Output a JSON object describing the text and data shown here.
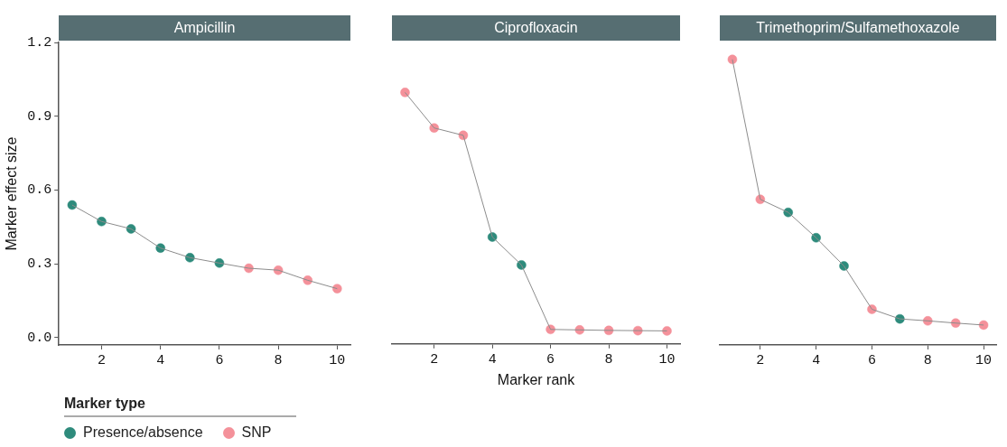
{
  "chart_data": [
    {
      "type": "scatter",
      "title": "Ampicillin",
      "ylabel": "Marker effect size",
      "legend": "bottom left",
      "legend_title": "Marker type",
      "marker": "circle",
      "grid": false,
      "x": [
        1,
        2,
        3,
        4,
        5,
        6,
        7,
        8,
        9,
        10
      ],
      "xlim": [
        0.55,
        10.45
      ],
      "xticks": [
        2,
        4,
        6,
        8,
        10
      ],
      "ylim": [
        -0.03,
        1.2
      ],
      "yticks": [
        {
          "value": 0,
          "label": "0.0"
        },
        0.3,
        0.6,
        0.9,
        1.2
      ],
      "series": [
        {
          "type": "line",
          "color": "#8c8c8c",
          "marker": "none",
          "line_style": "solid",
          "values": [
            0.539,
            0.472,
            0.442,
            0.364,
            0.325,
            0.303,
            0.282,
            0.274,
            0.233,
            0.199
          ]
        },
        {
          "name": "Presence/absence",
          "color": "#2e8b7c",
          "values": [
            0.539,
            0.472,
            0.442,
            0.364,
            0.325,
            0.303,
            null,
            null,
            null,
            null
          ]
        },
        {
          "name": "SNP",
          "color": "#f4919a",
          "values": [
            null,
            null,
            null,
            null,
            null,
            null,
            0.282,
            0.274,
            0.233,
            0.199
          ]
        }
      ]
    },
    {
      "type": "scatter",
      "title": "Ciprofloxacin",
      "xlabel": "Marker rank",
      "tick_labels": "x",
      "marker": "circle",
      "grid": false,
      "x": [
        1,
        2,
        3,
        4,
        5,
        6,
        7,
        8,
        9,
        10
      ],
      "xlim": [
        0.55,
        10.45
      ],
      "xticks": [
        2,
        4,
        6,
        8,
        10
      ],
      "ylim": [
        -0.03,
        1.2
      ],
      "series": [
        {
          "type": "line",
          "color": "#8c8c8c",
          "marker": "none",
          "line_style": "solid",
          "values": [
            0.996,
            0.851,
            0.821,
            0.406,
            0.292,
            0.029,
            0.027,
            0.025,
            0.024,
            0.023
          ]
        },
        {
          "color": "#2e8b7c",
          "values": [
            null,
            null,
            null,
            0.406,
            0.292,
            null,
            null,
            null,
            null,
            null
          ]
        },
        {
          "color": "#f4919a",
          "values": [
            0.996,
            0.851,
            0.821,
            null,
            null,
            0.029,
            0.027,
            0.025,
            0.024,
            0.023
          ]
        }
      ]
    },
    {
      "type": "scatter",
      "title": "Trimethoprim/Sulfamethoxazole",
      "tick_labels": "x",
      "marker": "circle",
      "grid": false,
      "x": [
        1,
        2,
        3,
        4,
        5,
        6,
        7,
        8,
        9,
        10
      ],
      "xlim": [
        0.55,
        10.45
      ],
      "xticks": [
        2,
        4,
        6,
        8,
        10
      ],
      "ylim": [
        -0.03,
        1.2
      ],
      "series": [
        {
          "type": "line",
          "color": "#8c8c8c",
          "marker": "none",
          "line_style": "solid",
          "values": [
            1.131,
            0.562,
            0.509,
            0.406,
            0.291,
            0.115,
            0.076,
            0.068,
            0.059,
            0.051
          ]
        },
        {
          "color": "#2e8b7c",
          "values": [
            null,
            null,
            0.509,
            0.406,
            0.291,
            null,
            0.076,
            null,
            null,
            null
          ]
        },
        {
          "color": "#f4919a",
          "values": [
            1.131,
            0.562,
            null,
            null,
            null,
            0.115,
            null,
            0.068,
            0.059,
            0.051
          ]
        }
      ]
    }
  ]
}
